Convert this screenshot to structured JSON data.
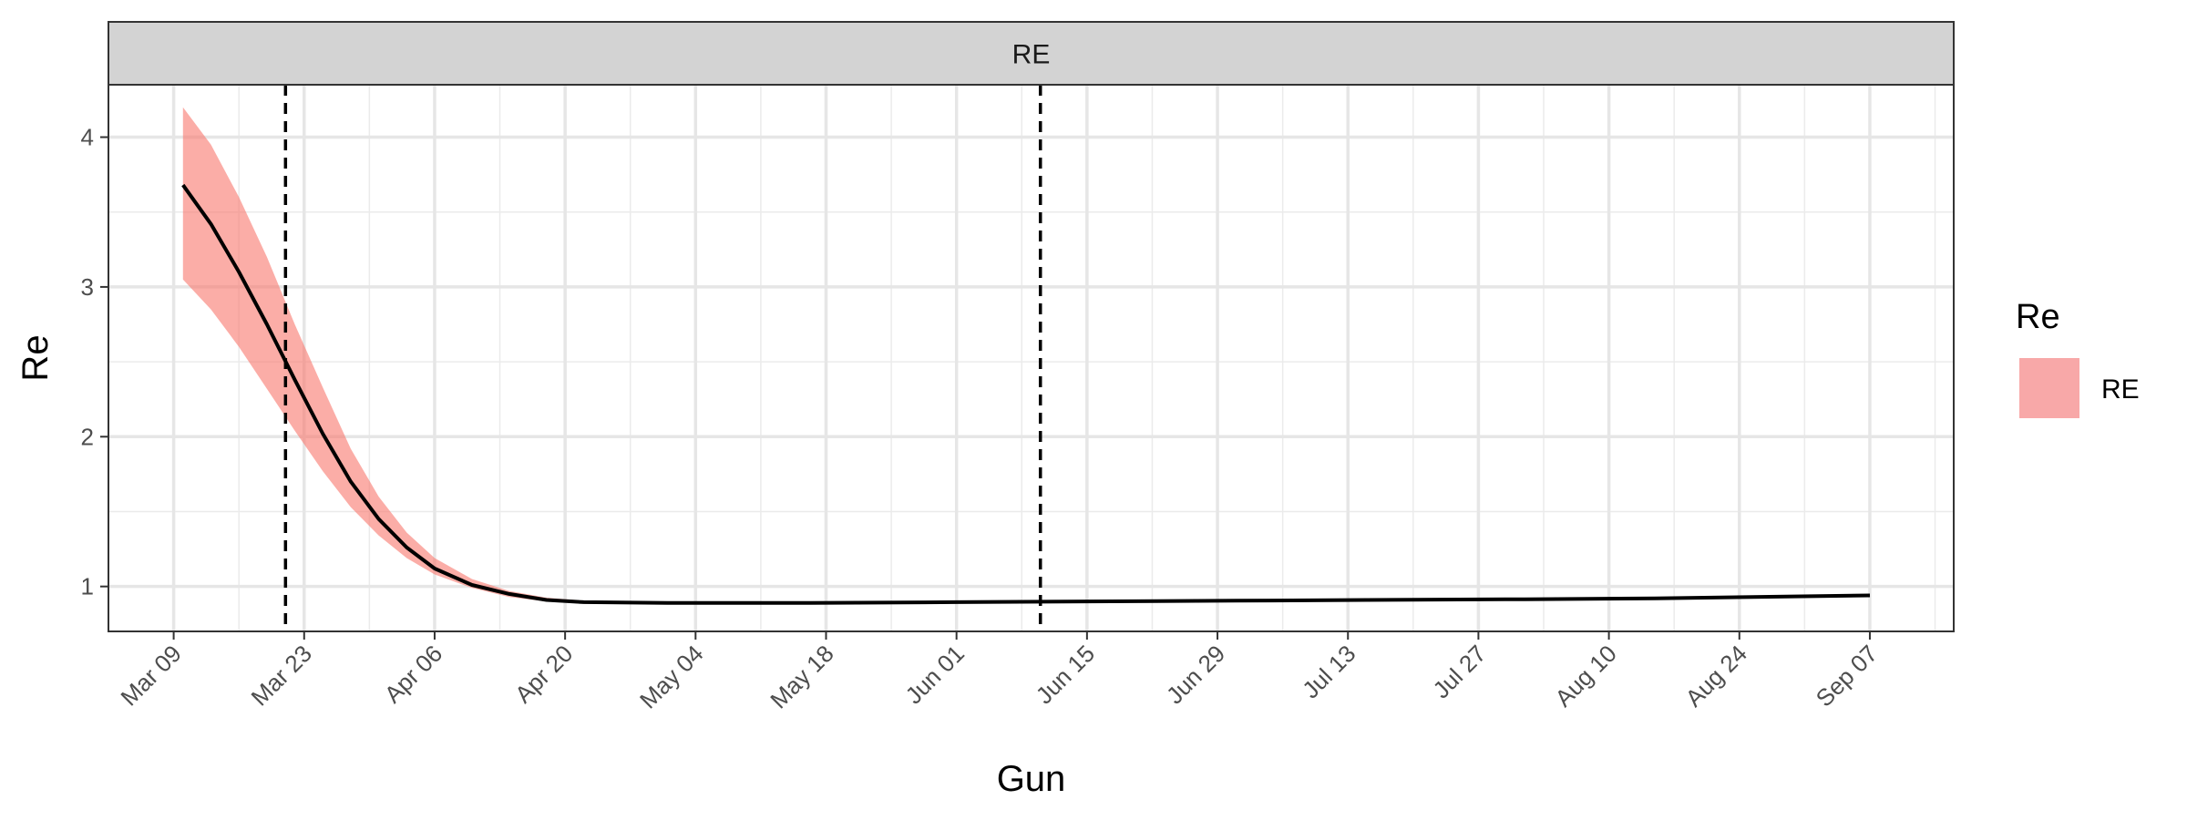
{
  "chart_data": {
    "type": "line",
    "panel_title": "RE",
    "xlabel": "Gun",
    "ylabel": "Re",
    "x_tick_labels": [
      "Mar 09",
      "Mar 23",
      "Apr 06",
      "Apr 20",
      "May 04",
      "May 18",
      "Jun 01",
      "Jun 15",
      "Jun 29",
      "Jul 13",
      "Jul 27",
      "Aug 10",
      "Aug 24",
      "Sep 07"
    ],
    "x_ticks": [
      "2020-03-09",
      "2020-03-23",
      "2020-04-06",
      "2020-04-20",
      "2020-05-04",
      "2020-05-18",
      "2020-06-01",
      "2020-06-15",
      "2020-06-29",
      "2020-07-13",
      "2020-07-27",
      "2020-08-10",
      "2020-08-24",
      "2020-09-07"
    ],
    "xlim": [
      "2020-03-02",
      "2020-09-16"
    ],
    "y_tick_labels": [
      "1",
      "2",
      "3",
      "4"
    ],
    "y_ticks": [
      1,
      2,
      3,
      4
    ],
    "ylim": [
      0.7,
      4.35
    ],
    "grid": true,
    "vlines": [
      "2020-03-21",
      "2020-06-10"
    ],
    "legend": {
      "title": "Re",
      "position": "right",
      "entries": [
        {
          "label": "RE",
          "color": "#F8A8A8"
        }
      ]
    },
    "colors": {
      "line": "#000000",
      "ribbon": "#F8766D",
      "strip": "#D3D3D3"
    },
    "series": [
      {
        "name": "RE",
        "x": [
          "2020-03-10",
          "2020-03-13",
          "2020-03-16",
          "2020-03-19",
          "2020-03-22",
          "2020-03-25",
          "2020-03-28",
          "2020-03-31",
          "2020-04-03",
          "2020-04-06",
          "2020-04-10",
          "2020-04-14",
          "2020-04-18",
          "2020-04-22",
          "2020-05-01",
          "2020-05-15",
          "2020-06-01",
          "2020-06-15",
          "2020-07-01",
          "2020-07-15",
          "2020-08-01",
          "2020-08-15",
          "2020-09-07"
        ],
        "y": [
          3.68,
          3.42,
          3.1,
          2.75,
          2.38,
          2.02,
          1.7,
          1.45,
          1.26,
          1.12,
          1.01,
          0.95,
          0.91,
          0.895,
          0.89,
          0.89,
          0.895,
          0.9,
          0.905,
          0.91,
          0.915,
          0.92,
          0.94
        ],
        "lower": [
          3.05,
          2.85,
          2.6,
          2.32,
          2.04,
          1.77,
          1.53,
          1.34,
          1.19,
          1.08,
          0.99,
          0.93,
          0.9,
          0.885,
          0.885,
          0.885,
          0.89,
          0.895,
          0.9,
          0.905,
          0.91,
          0.915,
          0.935
        ],
        "upper": [
          4.2,
          3.95,
          3.6,
          3.2,
          2.75,
          2.33,
          1.92,
          1.6,
          1.36,
          1.19,
          1.05,
          0.97,
          0.925,
          0.905,
          0.895,
          0.895,
          0.9,
          0.905,
          0.91,
          0.915,
          0.92,
          0.925,
          0.945
        ]
      }
    ]
  }
}
